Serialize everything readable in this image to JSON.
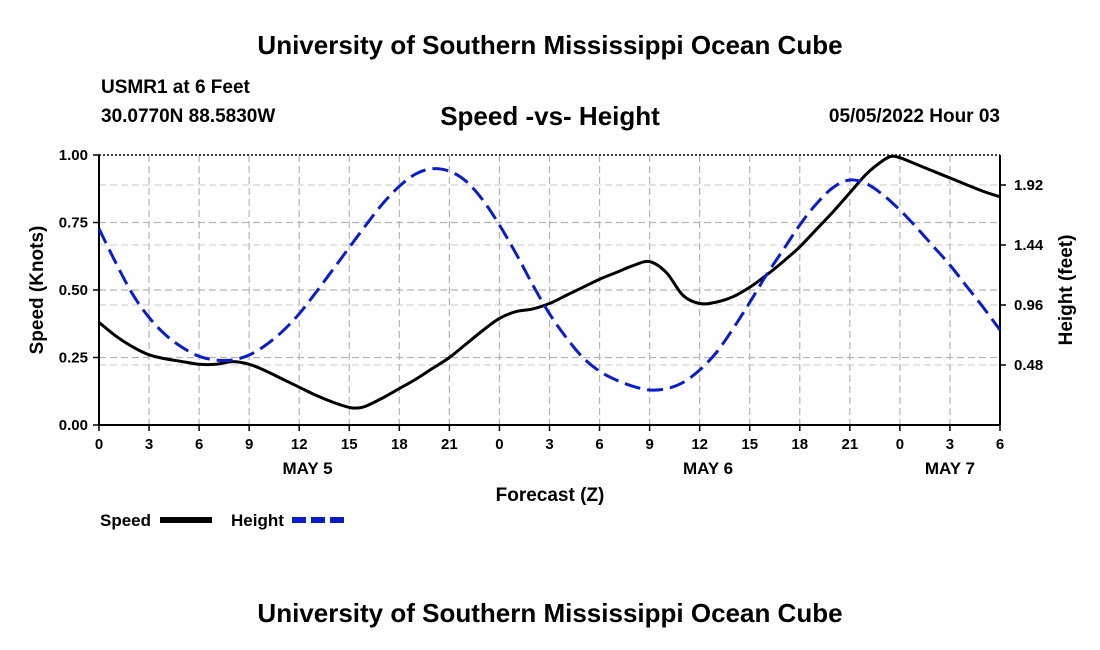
{
  "page": {
    "title_top": "University of Southern Mississippi Ocean Cube",
    "title_bottom": "University of Southern Mississippi Ocean Cube",
    "station": "USMR1 at 6 Feet",
    "coordinates": "30.0770N  88.5830W",
    "datetime": "05/05/2022 Hour 03"
  },
  "chart_data": {
    "type": "line",
    "title": "Speed -vs- Height",
    "xlabel": "Forecast (Z)",
    "ylabel": "Speed (Knots)",
    "ylabel_right": "Height (feet)",
    "x_hours_range": [
      0,
      54
    ],
    "x_ticks": [
      {
        "hour": 0,
        "label": "0"
      },
      {
        "hour": 3,
        "label": "3"
      },
      {
        "hour": 6,
        "label": "6"
      },
      {
        "hour": 9,
        "label": "9"
      },
      {
        "hour": 12,
        "label": "12"
      },
      {
        "hour": 15,
        "label": "15"
      },
      {
        "hour": 18,
        "label": "18"
      },
      {
        "hour": 21,
        "label": "21"
      },
      {
        "hour": 24,
        "label": "0"
      },
      {
        "hour": 27,
        "label": "3"
      },
      {
        "hour": 30,
        "label": "6"
      },
      {
        "hour": 33,
        "label": "9"
      },
      {
        "hour": 36,
        "label": "12"
      },
      {
        "hour": 39,
        "label": "15"
      },
      {
        "hour": 42,
        "label": "18"
      },
      {
        "hour": 45,
        "label": "21"
      },
      {
        "hour": 48,
        "label": "0"
      },
      {
        "hour": 51,
        "label": "3"
      },
      {
        "hour": 54,
        "label": "6"
      }
    ],
    "date_labels": [
      {
        "hour": 12.5,
        "label": "MAY 5"
      },
      {
        "hour": 36.5,
        "label": "MAY 6"
      },
      {
        "hour": 51,
        "label": "MAY 7"
      }
    ],
    "ylim": [
      0,
      1
    ],
    "y_ticks": [
      {
        "value": 0,
        "label": "0.00"
      },
      {
        "value": 0.25,
        "label": "0.25"
      },
      {
        "value": 0.5,
        "label": "0.50"
      },
      {
        "value": 0.75,
        "label": "0.75"
      },
      {
        "value": 1,
        "label": "1.00"
      }
    ],
    "ylim_right": [
      0,
      2.16
    ],
    "y_ticks_right": [
      {
        "value": 0.48,
        "label": "0.48"
      },
      {
        "value": 0.96,
        "label": "0.96"
      },
      {
        "value": 1.44,
        "label": "1.44"
      },
      {
        "value": 1.92,
        "label": "1.92"
      }
    ],
    "grid": true,
    "legend_position": "bottom-left",
    "series": [
      {
        "name": "Speed",
        "axis": "left",
        "color": "#000000",
        "dash": false,
        "x": [
          0,
          1,
          2,
          3,
          4,
          5,
          6,
          7,
          8,
          9,
          10,
          11,
          12,
          13,
          14,
          15,
          15.5,
          16,
          17,
          18,
          19,
          20,
          21,
          22,
          23,
          24,
          25,
          26,
          27,
          28,
          29,
          30,
          31,
          32,
          33,
          34,
          35,
          36,
          37,
          38,
          39,
          40,
          41,
          42,
          43,
          44,
          45,
          46,
          47,
          47.5,
          48,
          49,
          50,
          51,
          52,
          53,
          54
        ],
        "values": [
          0.38,
          0.33,
          0.29,
          0.26,
          0.245,
          0.235,
          0.225,
          0.225,
          0.235,
          0.225,
          0.2,
          0.17,
          0.14,
          0.11,
          0.085,
          0.065,
          0.063,
          0.07,
          0.1,
          0.135,
          0.17,
          0.21,
          0.25,
          0.3,
          0.35,
          0.395,
          0.42,
          0.43,
          0.45,
          0.48,
          0.51,
          0.54,
          0.565,
          0.59,
          0.605,
          0.565,
          0.48,
          0.45,
          0.455,
          0.475,
          0.51,
          0.555,
          0.605,
          0.66,
          0.725,
          0.79,
          0.86,
          0.93,
          0.98,
          0.995,
          0.99,
          0.965,
          0.94,
          0.915,
          0.89,
          0.865,
          0.845
        ]
      },
      {
        "name": "Height",
        "axis": "right",
        "color": "#0a1ec8",
        "dash": true,
        "x": [
          0,
          1,
          2,
          3,
          4,
          5,
          6,
          7,
          8,
          9,
          10,
          11,
          12,
          13,
          14,
          15,
          16,
          17,
          18,
          19,
          20,
          21,
          22,
          23,
          24,
          25,
          26,
          27,
          28,
          29,
          30,
          31,
          32,
          33,
          34,
          35,
          36,
          37,
          38,
          39,
          40,
          41,
          42,
          43,
          44,
          45,
          46,
          47,
          48,
          49,
          50,
          51,
          52,
          53,
          54
        ],
        "values": [
          1.57,
          1.3,
          1.05,
          0.86,
          0.72,
          0.62,
          0.55,
          0.52,
          0.52,
          0.56,
          0.64,
          0.75,
          0.89,
          1.06,
          1.24,
          1.42,
          1.6,
          1.77,
          1.91,
          2.01,
          2.05,
          2.03,
          1.95,
          1.8,
          1.6,
          1.37,
          1.12,
          0.89,
          0.7,
          0.54,
          0.43,
          0.36,
          0.31,
          0.28,
          0.29,
          0.34,
          0.44,
          0.58,
          0.77,
          0.98,
          1.2,
          1.4,
          1.6,
          1.77,
          1.9,
          1.96,
          1.93,
          1.84,
          1.72,
          1.58,
          1.43,
          1.28,
          1.11,
          0.94,
          0.76
        ]
      }
    ]
  }
}
